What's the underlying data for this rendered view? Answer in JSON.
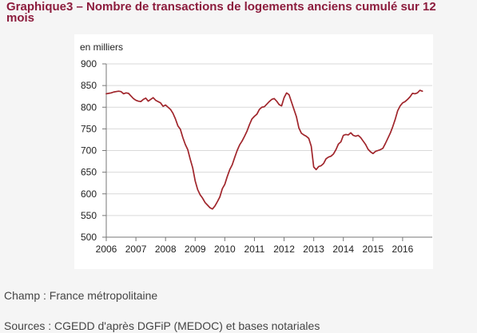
{
  "chart_data": {
    "type": "line",
    "title": "Graphique3 – Nombre de transactions de logements anciens cumulé sur 12 mois",
    "xlabel": "",
    "ylabel": "en milliers",
    "xlim": [
      2006,
      2017
    ],
    "ylim": [
      500,
      900
    ],
    "xticks": [
      2006,
      2007,
      2008,
      2009,
      2010,
      2011,
      2012,
      2013,
      2014,
      2015,
      2016
    ],
    "yticks": [
      500,
      550,
      600,
      650,
      700,
      750,
      800,
      850,
      900
    ],
    "grid": true,
    "series": [
      {
        "color": "#a0252b",
        "x": [
          "2006-01",
          "2006-02",
          "2006-03",
          "2006-04",
          "2006-05",
          "2006-06",
          "2006-07",
          "2006-08",
          "2006-09",
          "2006-10",
          "2006-11",
          "2006-12",
          "2007-01",
          "2007-02",
          "2007-03",
          "2007-04",
          "2007-05",
          "2007-06",
          "2007-07",
          "2007-08",
          "2007-09",
          "2007-10",
          "2007-11",
          "2007-12",
          "2008-01",
          "2008-02",
          "2008-03",
          "2008-04",
          "2008-05",
          "2008-06",
          "2008-07",
          "2008-08",
          "2008-09",
          "2008-10",
          "2008-11",
          "2008-12",
          "2009-01",
          "2009-02",
          "2009-03",
          "2009-04",
          "2009-05",
          "2009-06",
          "2009-07",
          "2009-08",
          "2009-09",
          "2009-10",
          "2009-11",
          "2009-12",
          "2010-01",
          "2010-02",
          "2010-03",
          "2010-04",
          "2010-05",
          "2010-06",
          "2010-07",
          "2010-08",
          "2010-09",
          "2010-10",
          "2010-11",
          "2010-12",
          "2011-01",
          "2011-02",
          "2011-03",
          "2011-04",
          "2011-05",
          "2011-06",
          "2011-07",
          "2011-08",
          "2011-09",
          "2011-10",
          "2011-11",
          "2011-12",
          "2012-01",
          "2012-02",
          "2012-03",
          "2012-04",
          "2012-05",
          "2012-06",
          "2012-07",
          "2012-08",
          "2012-09",
          "2012-10",
          "2012-11",
          "2012-12",
          "2013-01",
          "2013-02",
          "2013-03",
          "2013-04",
          "2013-05",
          "2013-06",
          "2013-07",
          "2013-08",
          "2013-09",
          "2013-10",
          "2013-11",
          "2013-12",
          "2014-01",
          "2014-02",
          "2014-03",
          "2014-04",
          "2014-05",
          "2014-06",
          "2014-07",
          "2014-08",
          "2014-09",
          "2014-10",
          "2014-11",
          "2014-12",
          "2015-01",
          "2015-02",
          "2015-03",
          "2015-04",
          "2015-05",
          "2015-06",
          "2015-07",
          "2015-08",
          "2015-09",
          "2015-10",
          "2015-11",
          "2015-12",
          "2016-01",
          "2016-02",
          "2016-03",
          "2016-04",
          "2016-05",
          "2016-06",
          "2016-07",
          "2016-08",
          "2016-09"
        ],
        "values": [
          831,
          832,
          833,
          835,
          836,
          837,
          836,
          831,
          833,
          832,
          826,
          820,
          816,
          814,
          813,
          818,
          821,
          814,
          818,
          822,
          816,
          813,
          810,
          802,
          805,
          800,
          795,
          786,
          773,
          757,
          749,
          730,
          714,
          702,
          680,
          660,
          630,
          610,
          598,
          590,
          580,
          574,
          568,
          565,
          572,
          582,
          593,
          612,
          622,
          640,
          656,
          667,
          684,
          700,
          713,
          722,
          733,
          745,
          760,
          773,
          779,
          784,
          795,
          800,
          801,
          807,
          813,
          818,
          820,
          814,
          806,
          803,
          822,
          833,
          829,
          812,
          795,
          778,
          752,
          740,
          736,
          733,
          728,
          710,
          662,
          656,
          663,
          665,
          670,
          681,
          685,
          687,
          692,
          702,
          715,
          720,
          735,
          737,
          736,
          741,
          735,
          733,
          735,
          730,
          722,
          714,
          703,
          697,
          693,
          698,
          700,
          702,
          705,
          716,
          728,
          740,
          755,
          772,
          792,
          803,
          810,
          813,
          818,
          824,
          832,
          831,
          833,
          839,
          837
        ]
      }
    ]
  },
  "notes": {
    "scope": "Champ : France métropolitaine",
    "sources": "Sources : CGEDD d'après DGFiP (MEDOC) et bases notariales"
  },
  "colors": {
    "page_background": "#f5f5f5",
    "panel_background": "#ffffff",
    "title": "#8c1c3d",
    "text": "#222222",
    "grid": "#d9d9d9",
    "axis": "#777777"
  }
}
